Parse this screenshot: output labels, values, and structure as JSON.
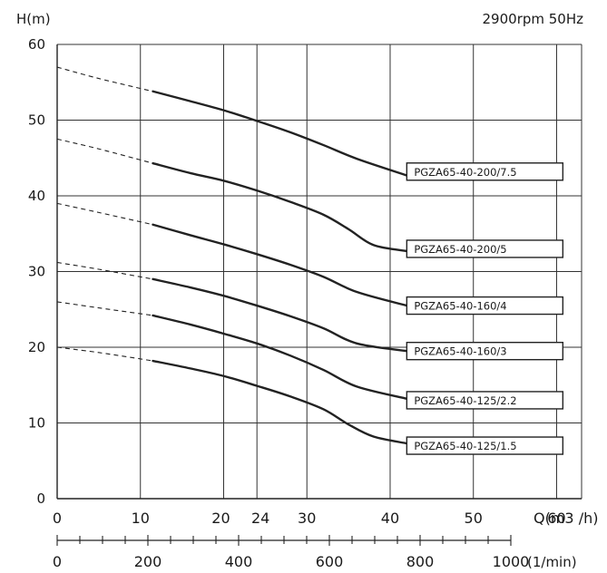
{
  "chart_data": {
    "type": "line",
    "title": "",
    "subtitle": "2900rpm 50Hz",
    "ylabel": "H(m)",
    "xlabel": "Q(m3 /h)",
    "x2label": "(1/min)",
    "xlim": [
      0,
      63
    ],
    "ylim": [
      0,
      60
    ],
    "y_ticks": [
      "0",
      "10",
      "20",
      "30",
      "40",
      "50",
      "60"
    ],
    "x_ticks": [
      {
        "value": 0,
        "label": "0"
      },
      {
        "value": 10,
        "label": "10"
      },
      {
        "value": 20,
        "label": "20"
      },
      {
        "value": 24,
        "label": "24"
      },
      {
        "value": 30,
        "label": "30"
      },
      {
        "value": 40,
        "label": "40"
      },
      {
        "value": 50,
        "label": "50"
      },
      {
        "value": 60,
        "label": "60"
      }
    ],
    "x_gridlines": [
      0,
      10,
      20,
      24,
      30,
      40,
      50,
      60,
      63
    ],
    "y_gridlines": [
      10,
      20,
      30,
      40,
      50,
      60
    ],
    "x2_ticks": [
      {
        "value": 0,
        "label": "0"
      },
      {
        "value": 200,
        "label": "200"
      },
      {
        "value": 400,
        "label": "400"
      },
      {
        "value": 600,
        "label": "600"
      },
      {
        "value": 800,
        "label": "800"
      },
      {
        "value": 1000,
        "label": "1000"
      }
    ],
    "x2_minor_step": 50,
    "x2_lim": [
      0,
      1000
    ],
    "grid": true,
    "series": [
      {
        "name": "PGZA65-40-200/7.5",
        "dashed": [
          [
            0,
            57
          ],
          [
            5,
            55.5
          ],
          [
            11.5,
            53.8
          ]
        ],
        "solid": [
          [
            11.5,
            53.8
          ],
          [
            16,
            52.5
          ],
          [
            20,
            51.3
          ],
          [
            24,
            49.9
          ],
          [
            28,
            48.4
          ],
          [
            32,
            46.7
          ],
          [
            36,
            44.9
          ],
          [
            42,
            42.7
          ]
        ],
        "label_anchor": [
          42,
          43.2
        ]
      },
      {
        "name": "PGZA65-40-200/5",
        "dashed": [
          [
            0,
            47.5
          ],
          [
            5,
            46.2
          ],
          [
            11.5,
            44.3
          ]
        ],
        "solid": [
          [
            11.5,
            44.3
          ],
          [
            16,
            43
          ],
          [
            20,
            42
          ],
          [
            24,
            40.7
          ],
          [
            28,
            39.2
          ],
          [
            32,
            37.5
          ],
          [
            35,
            35.6
          ],
          [
            38,
            33.5
          ],
          [
            42,
            32.7
          ]
        ],
        "label_anchor": [
          42,
          33
        ]
      },
      {
        "name": "PGZA65-40-160/4",
        "dashed": [
          [
            0,
            39
          ],
          [
            5,
            37.8
          ],
          [
            11.5,
            36.2
          ]
        ],
        "solid": [
          [
            11.5,
            36.2
          ],
          [
            16,
            34.8
          ],
          [
            20,
            33.6
          ],
          [
            24,
            32.3
          ],
          [
            28,
            30.9
          ],
          [
            32,
            29.3
          ],
          [
            36,
            27.3
          ],
          [
            42,
            25.5
          ]
        ],
        "label_anchor": [
          42,
          25.5
        ]
      },
      {
        "name": "PGZA65-40-160/3",
        "dashed": [
          [
            0,
            31.2
          ],
          [
            5,
            30.3
          ],
          [
            11.5,
            29
          ]
        ],
        "solid": [
          [
            11.5,
            29
          ],
          [
            16,
            27.9
          ],
          [
            20,
            26.8
          ],
          [
            24,
            25.5
          ],
          [
            28,
            24.1
          ],
          [
            32,
            22.5
          ],
          [
            36,
            20.5
          ],
          [
            42,
            19.5
          ]
        ],
        "label_anchor": [
          42,
          19.5
        ]
      },
      {
        "name": "PGZA65-40-125/2.2",
        "dashed": [
          [
            0,
            26
          ],
          [
            5,
            25.2
          ],
          [
            11.5,
            24.2
          ]
        ],
        "solid": [
          [
            11.5,
            24.2
          ],
          [
            16,
            23
          ],
          [
            20,
            21.8
          ],
          [
            24,
            20.5
          ],
          [
            28,
            18.9
          ],
          [
            32,
            17
          ],
          [
            36,
            14.8
          ],
          [
            42,
            13.2
          ]
        ],
        "label_anchor": [
          42,
          13
        ]
      },
      {
        "name": "PGZA65-40-125/1.5",
        "dashed": [
          [
            0,
            20
          ],
          [
            5,
            19.3
          ],
          [
            11.5,
            18.2
          ]
        ],
        "solid": [
          [
            11.5,
            18.2
          ],
          [
            16,
            17.2
          ],
          [
            20,
            16.2
          ],
          [
            24,
            14.9
          ],
          [
            28,
            13.5
          ],
          [
            32,
            11.8
          ],
          [
            35,
            9.8
          ],
          [
            38,
            8.2
          ],
          [
            42,
            7.3
          ]
        ],
        "label_anchor": [
          42,
          7
        ]
      }
    ],
    "legend_labels": [
      "PGZA65-40-200/7.5",
      "PGZA65-40-200/5",
      "PGZA65-40-160/4",
      "PGZA65-40-160/3",
      "PGZA65-40-125/2.2",
      "PGZA65-40-125/1.5"
    ]
  }
}
